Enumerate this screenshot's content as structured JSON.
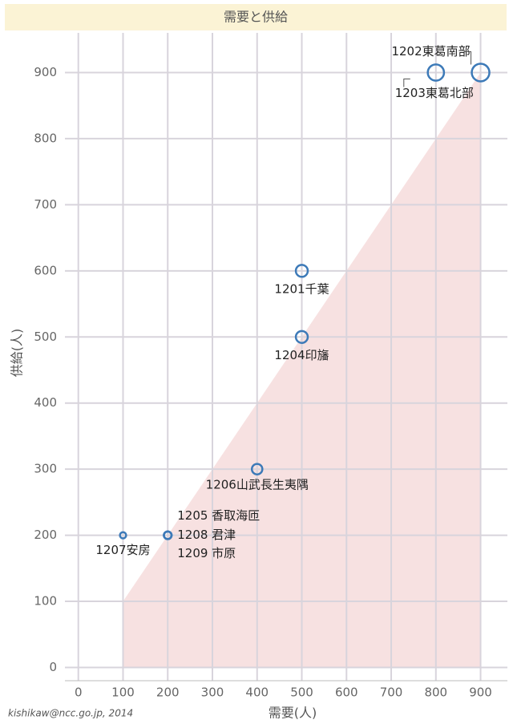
{
  "chart_data": {
    "type": "scatter",
    "title": "需要と供給",
    "x_label": "需要(人)",
    "y_label": "供給(人)",
    "footer": "kishikaw@ncc.go.jp, 2014",
    "points": [
      {
        "label": "1201千葉",
        "x": 500,
        "y": 600
      },
      {
        "label": "1202東葛南部",
        "x": 900,
        "y": 900
      },
      {
        "label": "1203東葛北部",
        "x": 800,
        "y": 900
      },
      {
        "label": "1204印旛",
        "x": 500,
        "y": 500
      },
      {
        "label": "1205 香取海匝",
        "x": 200,
        "y": 200
      },
      {
        "label": "1206山武長生夷隅",
        "x": 400,
        "y": 300
      },
      {
        "label": "1207安房",
        "x": 100,
        "y": 200
      },
      {
        "label": "1208 君津",
        "x": 200,
        "y": 200
      },
      {
        "label": "1209 市原",
        "x": 200,
        "y": 200
      }
    ],
    "color": "#3d7ab8",
    "shade_color": "#f7e1e1",
    "xlim": [
      -30,
      960
    ],
    "ylim": [
      -20,
      960
    ],
    "xticks": [
      0,
      100,
      200,
      300,
      400,
      500,
      600,
      700,
      800,
      900
    ],
    "yticks": [
      0,
      100,
      200,
      300,
      400,
      500,
      600,
      700,
      800,
      900
    ],
    "grid": true
  }
}
